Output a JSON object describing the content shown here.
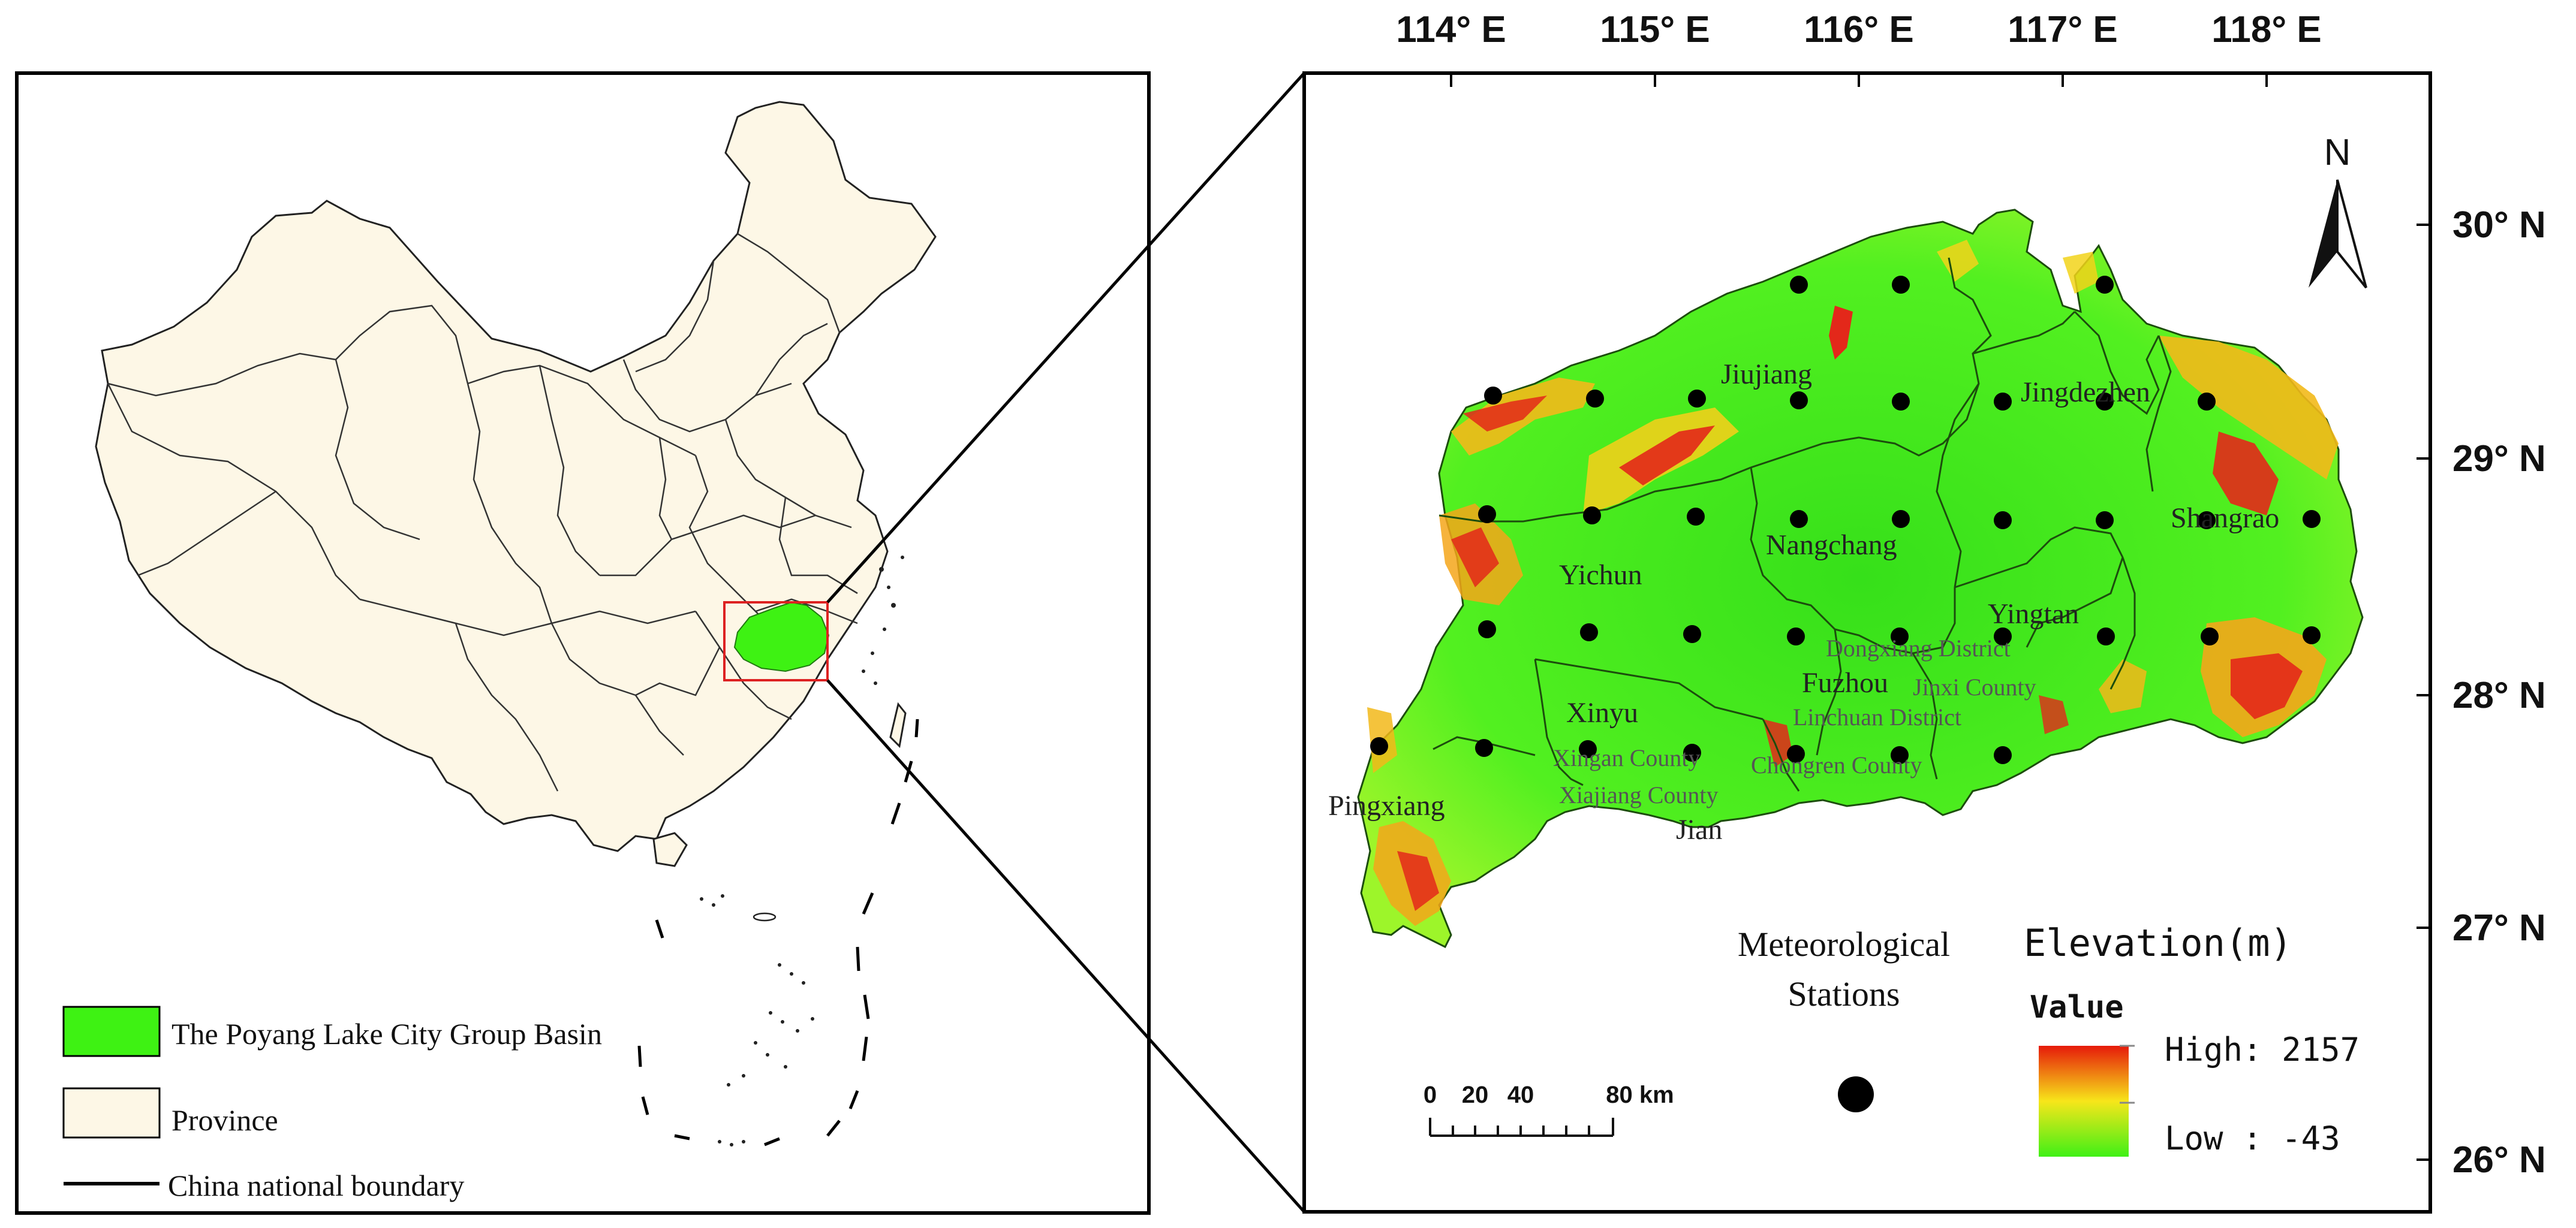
{
  "left_map": {
    "legend": {
      "basin_label": "The Poyang Lake City Group Basin",
      "province_label": "Province",
      "boundary_label": "China national boundary"
    },
    "colors": {
      "basin": "#3ef213",
      "province": "#fdf7e6",
      "inset_box": "#dd2222"
    }
  },
  "right_map": {
    "longitude_labels": [
      "114° E",
      "115° E",
      "116° E",
      "117° E",
      "118° E"
    ],
    "latitude_labels": [
      "30° N",
      "29° N",
      "28° N",
      "27° N",
      "26° N"
    ],
    "north_arrow_label": "N",
    "city_labels": {
      "jiujiang": "Jiujiang",
      "jingdezhen": "Jingdezhen",
      "shangrao": "Shangrao",
      "nangchang": "Nangchang",
      "yichun": "Yichun",
      "yingtan": "Yingtan",
      "fuzhou": "Fuzhou",
      "xinyu": "Xinyu",
      "pingxiang": "Pingxiang",
      "jian": "Jian"
    },
    "county_labels": {
      "dongxiang": "Dongxiang District",
      "jinxi": "Jinxi County",
      "linchuan": "Linchuan District",
      "xingan": "Xingan County",
      "chongren": "Chongren County",
      "xiajiang": "Xiajiang County"
    },
    "scale_bar": {
      "ticks": [
        "0",
        "20",
        "40",
        "80 km"
      ]
    },
    "stations_legend": {
      "line1": "Meteorological",
      "line2": "Stations"
    },
    "elevation_legend": {
      "title": "Elevation(m)",
      "value_label": "Value",
      "high_label": "High: 2157",
      "low_label": "Low : -43",
      "high": 2157,
      "low": -43,
      "ramp_colors": [
        "#e61a0a",
        "#f7e61a",
        "#3ff016"
      ]
    },
    "station_count": 39
  }
}
